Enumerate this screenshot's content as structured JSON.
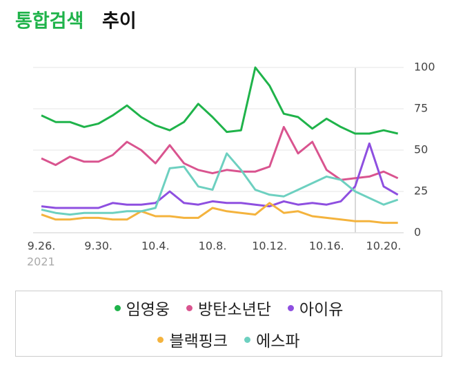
{
  "chart_data": {
    "type": "line",
    "title_highlight": "통합검색",
    "title": "추이",
    "year_label": "2021",
    "categories": [
      "9.26.",
      null,
      null,
      null,
      "9.30.",
      null,
      null,
      null,
      "10.4.",
      null,
      null,
      null,
      "10.8.",
      null,
      null,
      null,
      "10.12.",
      null,
      null,
      null,
      "10.16.",
      null,
      null,
      null,
      "10.20.",
      null
    ],
    "series": [
      {
        "name": "임영웅",
        "color": "#1fb34a",
        "values": [
          71,
          67,
          67,
          64,
          66,
          71,
          77,
          70,
          65,
          62,
          67,
          78,
          70,
          61,
          62,
          100,
          89,
          72,
          70,
          63,
          69,
          64,
          60,
          60,
          62,
          60
        ]
      },
      {
        "name": "방탄소년단",
        "color": "#d9548f",
        "values": [
          45,
          41,
          46,
          43,
          43,
          47,
          55,
          50,
          42,
          53,
          42,
          38,
          36,
          38,
          37,
          37,
          40,
          64,
          48,
          55,
          38,
          32,
          33,
          34,
          37,
          33
        ]
      },
      {
        "name": "아이유",
        "color": "#8e4fe0",
        "values": [
          16,
          15,
          15,
          15,
          15,
          18,
          17,
          17,
          18,
          25,
          18,
          17,
          19,
          18,
          18,
          17,
          16,
          19,
          17,
          18,
          17,
          19,
          28,
          54,
          28,
          23
        ]
      },
      {
        "name": "블랙핑크",
        "color": "#f4b33d",
        "values": [
          11,
          8,
          8,
          9,
          9,
          8,
          8,
          13,
          10,
          10,
          9,
          9,
          15,
          13,
          12,
          11,
          18,
          12,
          13,
          10,
          9,
          8,
          7,
          7,
          6,
          6
        ]
      },
      {
        "name": "에스파",
        "color": "#6dd0c0",
        "values": [
          14,
          12,
          11,
          12,
          12,
          12,
          13,
          13,
          15,
          39,
          40,
          28,
          26,
          48,
          38,
          26,
          23,
          22,
          26,
          30,
          34,
          32,
          25,
          21,
          17,
          20
        ]
      }
    ],
    "ylim": [
      0,
      100
    ],
    "yticks": [
      0,
      25,
      50,
      75,
      100
    ],
    "grid": true
  }
}
